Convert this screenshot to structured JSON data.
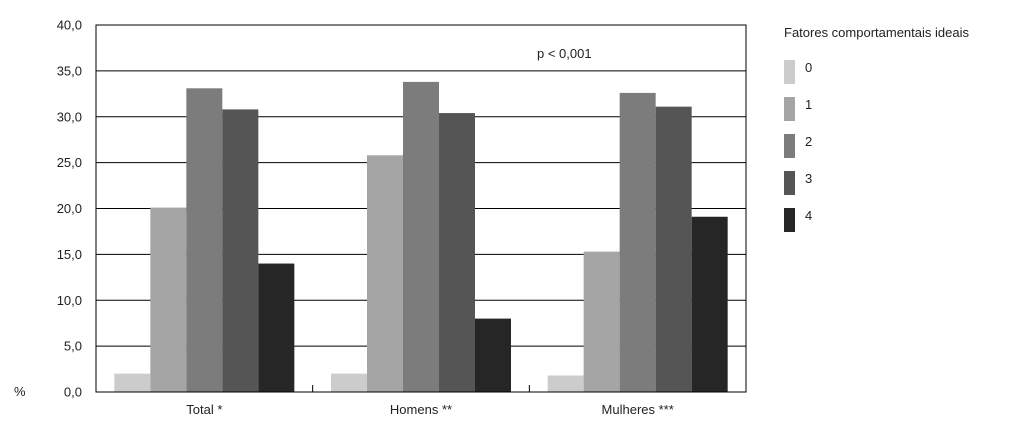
{
  "chart_data": {
    "type": "bar",
    "categories": [
      "Total *",
      "Homens **",
      "Mulheres ***"
    ],
    "series": [
      {
        "name": "0",
        "color": "#cccccc",
        "values": [
          2.0,
          2.0,
          1.8
        ]
      },
      {
        "name": "1",
        "color": "#a5a5a5",
        "values": [
          20.1,
          25.8,
          15.3
        ]
      },
      {
        "name": "2",
        "color": "#7c7c7c",
        "values": [
          33.1,
          33.8,
          32.6
        ]
      },
      {
        "name": "3",
        "color": "#555555",
        "values": [
          30.8,
          30.4,
          31.1
        ]
      },
      {
        "name": "4",
        "color": "#262626",
        "values": [
          14.0,
          8.0,
          19.1
        ]
      }
    ],
    "ylabel": "%",
    "ylim": [
      0,
      40
    ],
    "yticks": [
      "0,0",
      "5,0",
      "10,0",
      "15,0",
      "20,0",
      "25,0",
      "30,0",
      "35,0",
      "40,0"
    ],
    "grid": true,
    "annotation": "p < 0,001",
    "legend": {
      "title": "Fatores comportamentais ideais",
      "placement": "right"
    }
  }
}
